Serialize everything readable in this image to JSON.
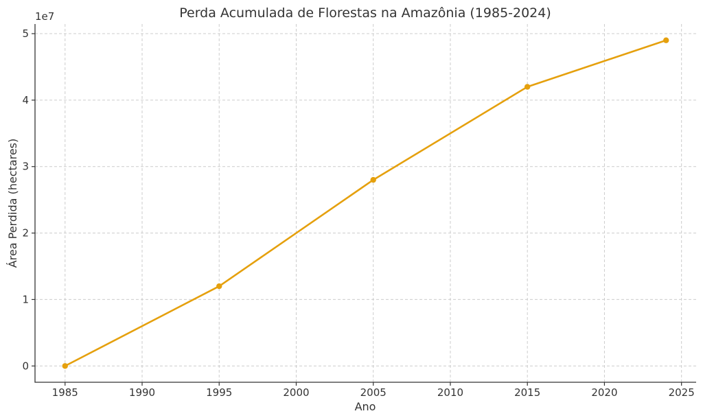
{
  "chart_data": {
    "type": "line",
    "title": "Perda Acumulada de Florestas na Amazônia (1985-2024)",
    "xlabel": "Ano",
    "ylabel": "Área Perdida (hectares)",
    "y_offset_label": "1e7",
    "xlim": [
      1983.05,
      2025.95
    ],
    "ylim": [
      -2450000,
      51450000
    ],
    "x_ticks": [
      1985,
      1990,
      1995,
      2000,
      2005,
      2010,
      2015,
      2020,
      2025
    ],
    "y_ticks": [
      0,
      10000000,
      20000000,
      30000000,
      40000000,
      50000000
    ],
    "y_tick_labels": [
      "0",
      "1",
      "2",
      "3",
      "4",
      "5"
    ],
    "grid": true,
    "series": [
      {
        "x": [
          1985,
          1995,
          2005,
          2015,
          2024
        ],
        "y": [
          0,
          12000000,
          28000000,
          42000000,
          49000000
        ],
        "color": "#e5a00d",
        "marker": "circle"
      }
    ]
  }
}
